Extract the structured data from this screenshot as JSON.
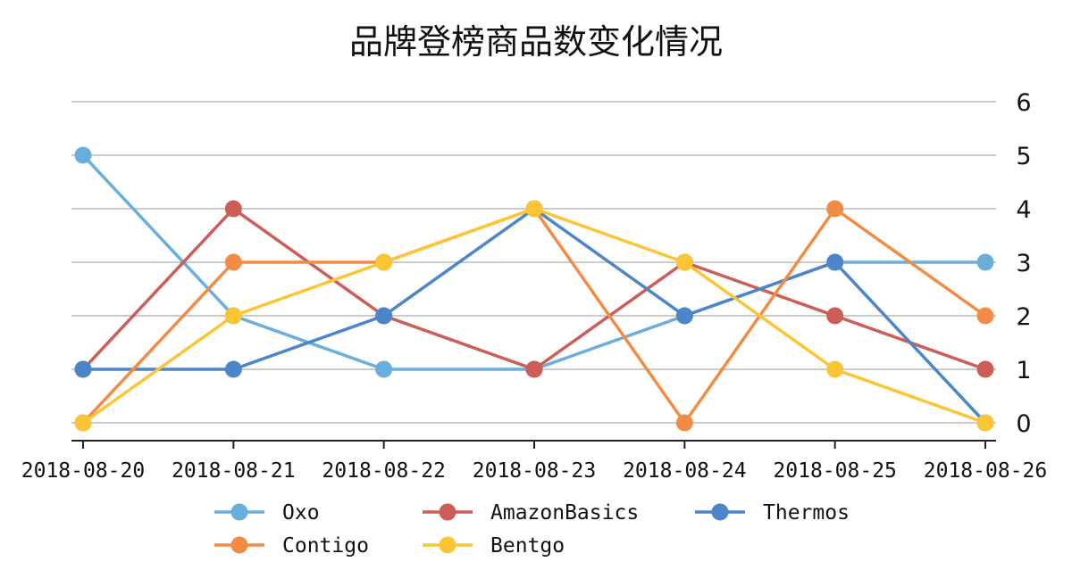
{
  "chart_data": {
    "type": "line",
    "title": "品牌登榜商品数变化情况",
    "xlabel": "",
    "ylabel": "",
    "x": [
      "2018-08-20",
      "2018-08-21",
      "2018-08-22",
      "2018-08-23",
      "2018-08-24",
      "2018-08-25",
      "2018-08-26"
    ],
    "ylim": [
      0,
      6
    ],
    "yticks": [
      0,
      1,
      2,
      3,
      4,
      5,
      6
    ],
    "y_axis_side": "right",
    "grid": "horizontal",
    "legend_position": "bottom",
    "series": [
      {
        "name": "Oxo",
        "color": "#6aaedb",
        "values": [
          5,
          2,
          1,
          1,
          2,
          3,
          3
        ]
      },
      {
        "name": "AmazonBasics",
        "color": "#cc5d57",
        "values": [
          1,
          4,
          2,
          1,
          3,
          2,
          1
        ]
      },
      {
        "name": "Thermos",
        "color": "#4c86c8",
        "values": [
          1,
          1,
          2,
          4,
          2,
          3,
          0
        ]
      },
      {
        "name": "Contigo",
        "color": "#f28c45",
        "values": [
          0,
          3,
          3,
          4,
          0,
          4,
          2
        ]
      },
      {
        "name": "Bentgo",
        "color": "#fcc535",
        "values": [
          0,
          2,
          3,
          4,
          3,
          1,
          0
        ]
      }
    ]
  }
}
